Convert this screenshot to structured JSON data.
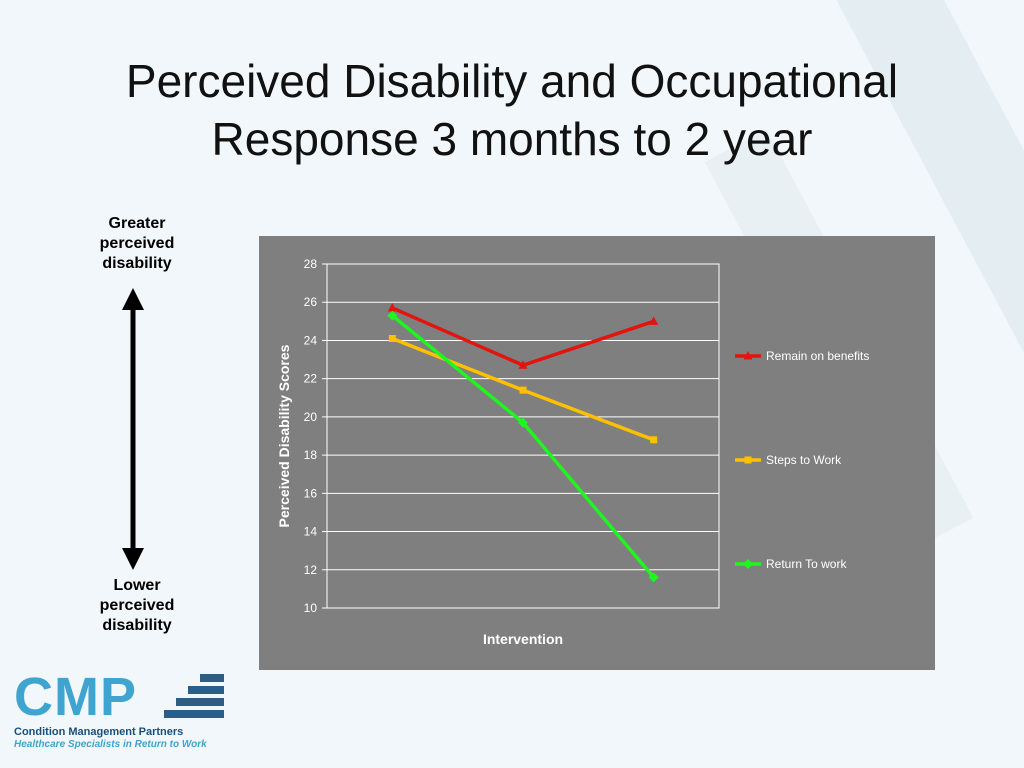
{
  "slide": {
    "title_line1": "Perceived Disability and Occupational",
    "title_line2": "Response 3 months to 2 year"
  },
  "scale_labels": {
    "top": [
      "Greater",
      "perceived",
      "disability"
    ],
    "bottom": [
      "Lower",
      "perceived",
      "disability"
    ]
  },
  "chart_data": {
    "type": "line",
    "xlabel": "Intervention",
    "ylabel": "Perceived Disability Scores",
    "ylim": [
      10,
      28
    ],
    "yticks": [
      10,
      12,
      14,
      16,
      18,
      20,
      22,
      24,
      26,
      28
    ],
    "x": [
      1,
      2,
      3
    ],
    "grid": true,
    "legend": "right",
    "series": [
      {
        "name": "Remain on benefits",
        "values": [
          25.7,
          22.7,
          25.0
        ],
        "color": "#e3140e",
        "marker": "triangle"
      },
      {
        "name": "Steps to Work",
        "values": [
          24.1,
          21.4,
          18.8
        ],
        "color": "#ffc000",
        "marker": "square"
      },
      {
        "name": "Return To work",
        "values": [
          25.3,
          19.7,
          11.6
        ],
        "color": "#1ff51f",
        "marker": "diamond"
      }
    ]
  },
  "logo": {
    "name": "CMP",
    "company": "Condition Management Partners",
    "tagline": "Healthcare Specialists in Return to Work"
  }
}
